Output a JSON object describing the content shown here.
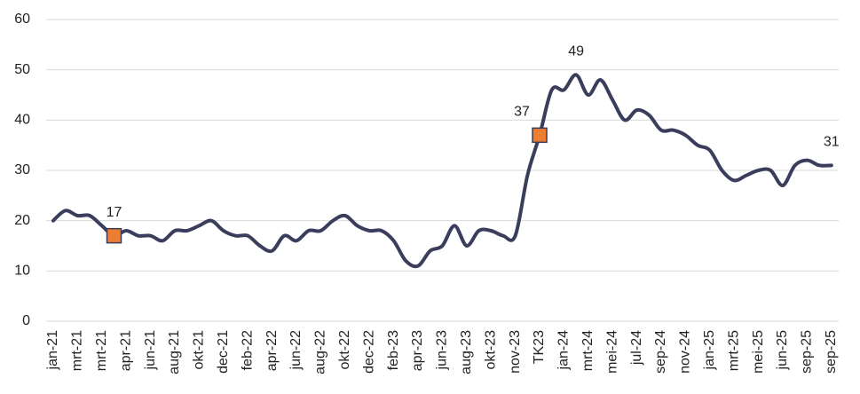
{
  "chart_data": {
    "type": "line",
    "categories": [
      "jan-21",
      null,
      "mrt-21",
      null,
      "mrt-21",
      null,
      "apr-21",
      null,
      "jun-21",
      null,
      "aug-21",
      null,
      "okt-21",
      null,
      "dec-21",
      null,
      "feb-22",
      null,
      "apr-22",
      null,
      "jun-22",
      null,
      "aug-22",
      null,
      "okt-22",
      null,
      "dec-22",
      null,
      "feb-23",
      null,
      "apr-23",
      null,
      "jun-23",
      null,
      "aug-23",
      null,
      "okt-23",
      null,
      "nov-23",
      null,
      "TK23",
      null,
      "jan-24",
      null,
      "mrt-24",
      null,
      "mei-24",
      null,
      "jul-24",
      null,
      "sep-24",
      null,
      "nov-24",
      null,
      "jan-25",
      null,
      "mrt-25",
      null,
      "mei-25",
      null,
      "jun-25",
      null,
      "sep-25",
      null,
      "sep-25"
    ],
    "series": [
      {
        "color": "#3a3d5c",
        "values": [
          20,
          22,
          21,
          21,
          19,
          17,
          18,
          17,
          17,
          16,
          18,
          18,
          19,
          20,
          18,
          17,
          17,
          15,
          14,
          17,
          16,
          18,
          18,
          20,
          21,
          19,
          18,
          18,
          16,
          12,
          11,
          14,
          15,
          19,
          15,
          18,
          18,
          17,
          17,
          29,
          37,
          46,
          46,
          49,
          45,
          48,
          44,
          40,
          42,
          41,
          38,
          38,
          37,
          35,
          34,
          30,
          28,
          29,
          30,
          30,
          27,
          31,
          32,
          31,
          31
        ],
        "value_labels": [
          null,
          null,
          null,
          null,
          null,
          "17",
          null,
          null,
          null,
          null,
          null,
          null,
          null,
          null,
          null,
          null,
          null,
          null,
          null,
          null,
          null,
          null,
          null,
          null,
          null,
          null,
          null,
          null,
          null,
          null,
          null,
          null,
          null,
          null,
          null,
          null,
          null,
          null,
          null,
          null,
          "37",
          null,
          null,
          "49",
          null,
          null,
          null,
          null,
          null,
          null,
          null,
          null,
          null,
          null,
          null,
          null,
          null,
          null,
          null,
          null,
          null,
          null,
          null,
          null,
          "31"
        ],
        "marker_points": [
          5,
          40
        ],
        "marker_color": "#ed7d31"
      }
    ],
    "ylim": [
      0,
      60
    ],
    "yticks": [
      0,
      10,
      20,
      30,
      40,
      50,
      60
    ],
    "grid": true
  }
}
